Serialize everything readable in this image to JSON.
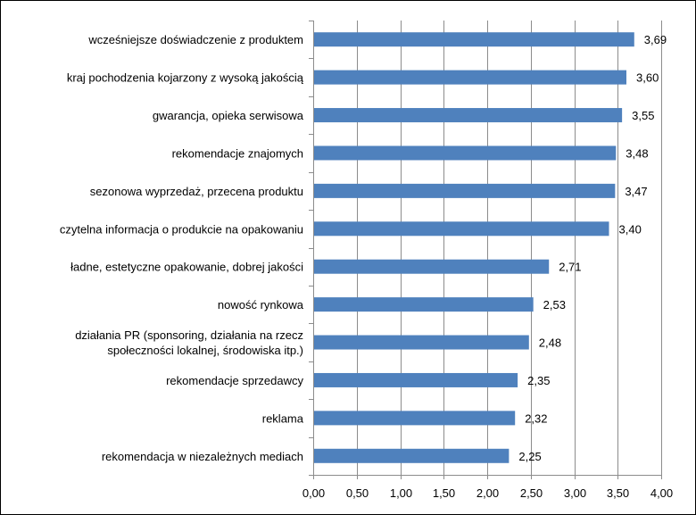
{
  "chart_data": {
    "type": "bar",
    "orientation": "horizontal",
    "title": "",
    "xlabel": "",
    "ylabel": "",
    "categories": [
      [
        "wcześniejsze doświadczenie z produktem"
      ],
      [
        "kraj pochodzenia kojarzony z wysoką jakością"
      ],
      [
        "gwarancja, opieka serwisowa"
      ],
      [
        "rekomendacje znajomych"
      ],
      [
        "sezonowa wyprzedaż, przecena produktu"
      ],
      [
        "czytelna informacja o produkcie na opakowaniu"
      ],
      [
        "ładne, estetyczne opakowanie, dobrej jakości"
      ],
      [
        "nowość rynkowa"
      ],
      [
        "działania PR (sponsoring, działania na rzecz",
        "społeczności lokalnej, środowiska itp.)"
      ],
      [
        "rekomendacje sprzedawcy"
      ],
      [
        "reklama"
      ],
      [
        "rekomendacja w niezależnych mediach"
      ]
    ],
    "values": [
      3.69,
      3.6,
      3.55,
      3.48,
      3.47,
      3.4,
      2.71,
      2.53,
      2.48,
      2.35,
      2.32,
      2.25
    ],
    "value_labels": [
      "3,69",
      "3,60",
      "3,55",
      "3,48",
      "3,47",
      "3,40",
      "2,71",
      "2,53",
      "2,48",
      "2,35",
      "2,32",
      "2,25"
    ],
    "xlim": [
      0,
      4
    ],
    "x_ticks": [
      0,
      0.5,
      1,
      1.5,
      2,
      2.5,
      3,
      3.5,
      4
    ],
    "x_tick_labels": [
      "0,00",
      "0,50",
      "1,00",
      "1,50",
      "2,00",
      "2,50",
      "3,00",
      "3,50",
      "4,00"
    ],
    "grid": "vertical",
    "legend": "none",
    "bar_color": "#4F81BD",
    "grid_color": "#8C8C8C"
  }
}
